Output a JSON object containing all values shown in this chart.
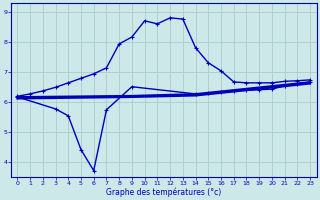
{
  "bg_color": "#cce8e8",
  "line_color": "#0000bb",
  "grid_color": "#aacccc",
  "xlabel": "Graphe des températures (°c)",
  "xlabel_color": "#0000bb",
  "xlim": [
    -0.5,
    23.5
  ],
  "ylim": [
    3.5,
    9.3
  ],
  "yticks": [
    4,
    5,
    6,
    7,
    8,
    9
  ],
  "xticks": [
    0,
    1,
    2,
    3,
    4,
    5,
    6,
    7,
    8,
    9,
    10,
    11,
    12,
    13,
    14,
    15,
    16,
    17,
    18,
    19,
    20,
    21,
    22,
    23
  ],
  "series": [
    {
      "x": [
        0,
        1,
        2,
        3,
        4,
        5,
        6,
        7,
        8,
        9,
        10,
        11,
        12,
        13,
        14,
        15,
        16,
        17,
        18,
        19,
        20,
        21,
        22,
        23
      ],
      "y": [
        6.2,
        6.28,
        6.38,
        6.5,
        6.65,
        6.8,
        6.95,
        7.15,
        7.95,
        8.18,
        8.72,
        8.62,
        8.82,
        8.78,
        7.82,
        7.32,
        7.05,
        6.68,
        6.65,
        6.65,
        6.65,
        6.7,
        6.72,
        6.75
      ],
      "marker": "+",
      "lw": 1.0
    },
    {
      "x": [
        0,
        3,
        4,
        5,
        6,
        7,
        9,
        14,
        15,
        16,
        17,
        18,
        19,
        20,
        21,
        22,
        23
      ],
      "y": [
        6.18,
        5.78,
        5.55,
        4.42,
        3.72,
        5.75,
        6.52,
        6.28,
        6.3,
        6.35,
        6.38,
        6.4,
        6.42,
        6.44,
        6.55,
        6.62,
        6.67
      ],
      "marker": "+",
      "lw": 1.0
    },
    {
      "x": [
        0,
        9,
        14,
        23
      ],
      "y": [
        6.18,
        6.22,
        6.28,
        6.68
      ],
      "marker": null,
      "lw": 1.2
    },
    {
      "x": [
        0,
        9,
        14,
        23
      ],
      "y": [
        6.15,
        6.2,
        6.25,
        6.65
      ],
      "marker": null,
      "lw": 1.2
    },
    {
      "x": [
        0,
        9,
        14,
        23
      ],
      "y": [
        6.12,
        6.17,
        6.22,
        6.62
      ],
      "marker": null,
      "lw": 1.2
    }
  ],
  "figsize": [
    3.2,
    2.0
  ],
  "dpi": 100
}
